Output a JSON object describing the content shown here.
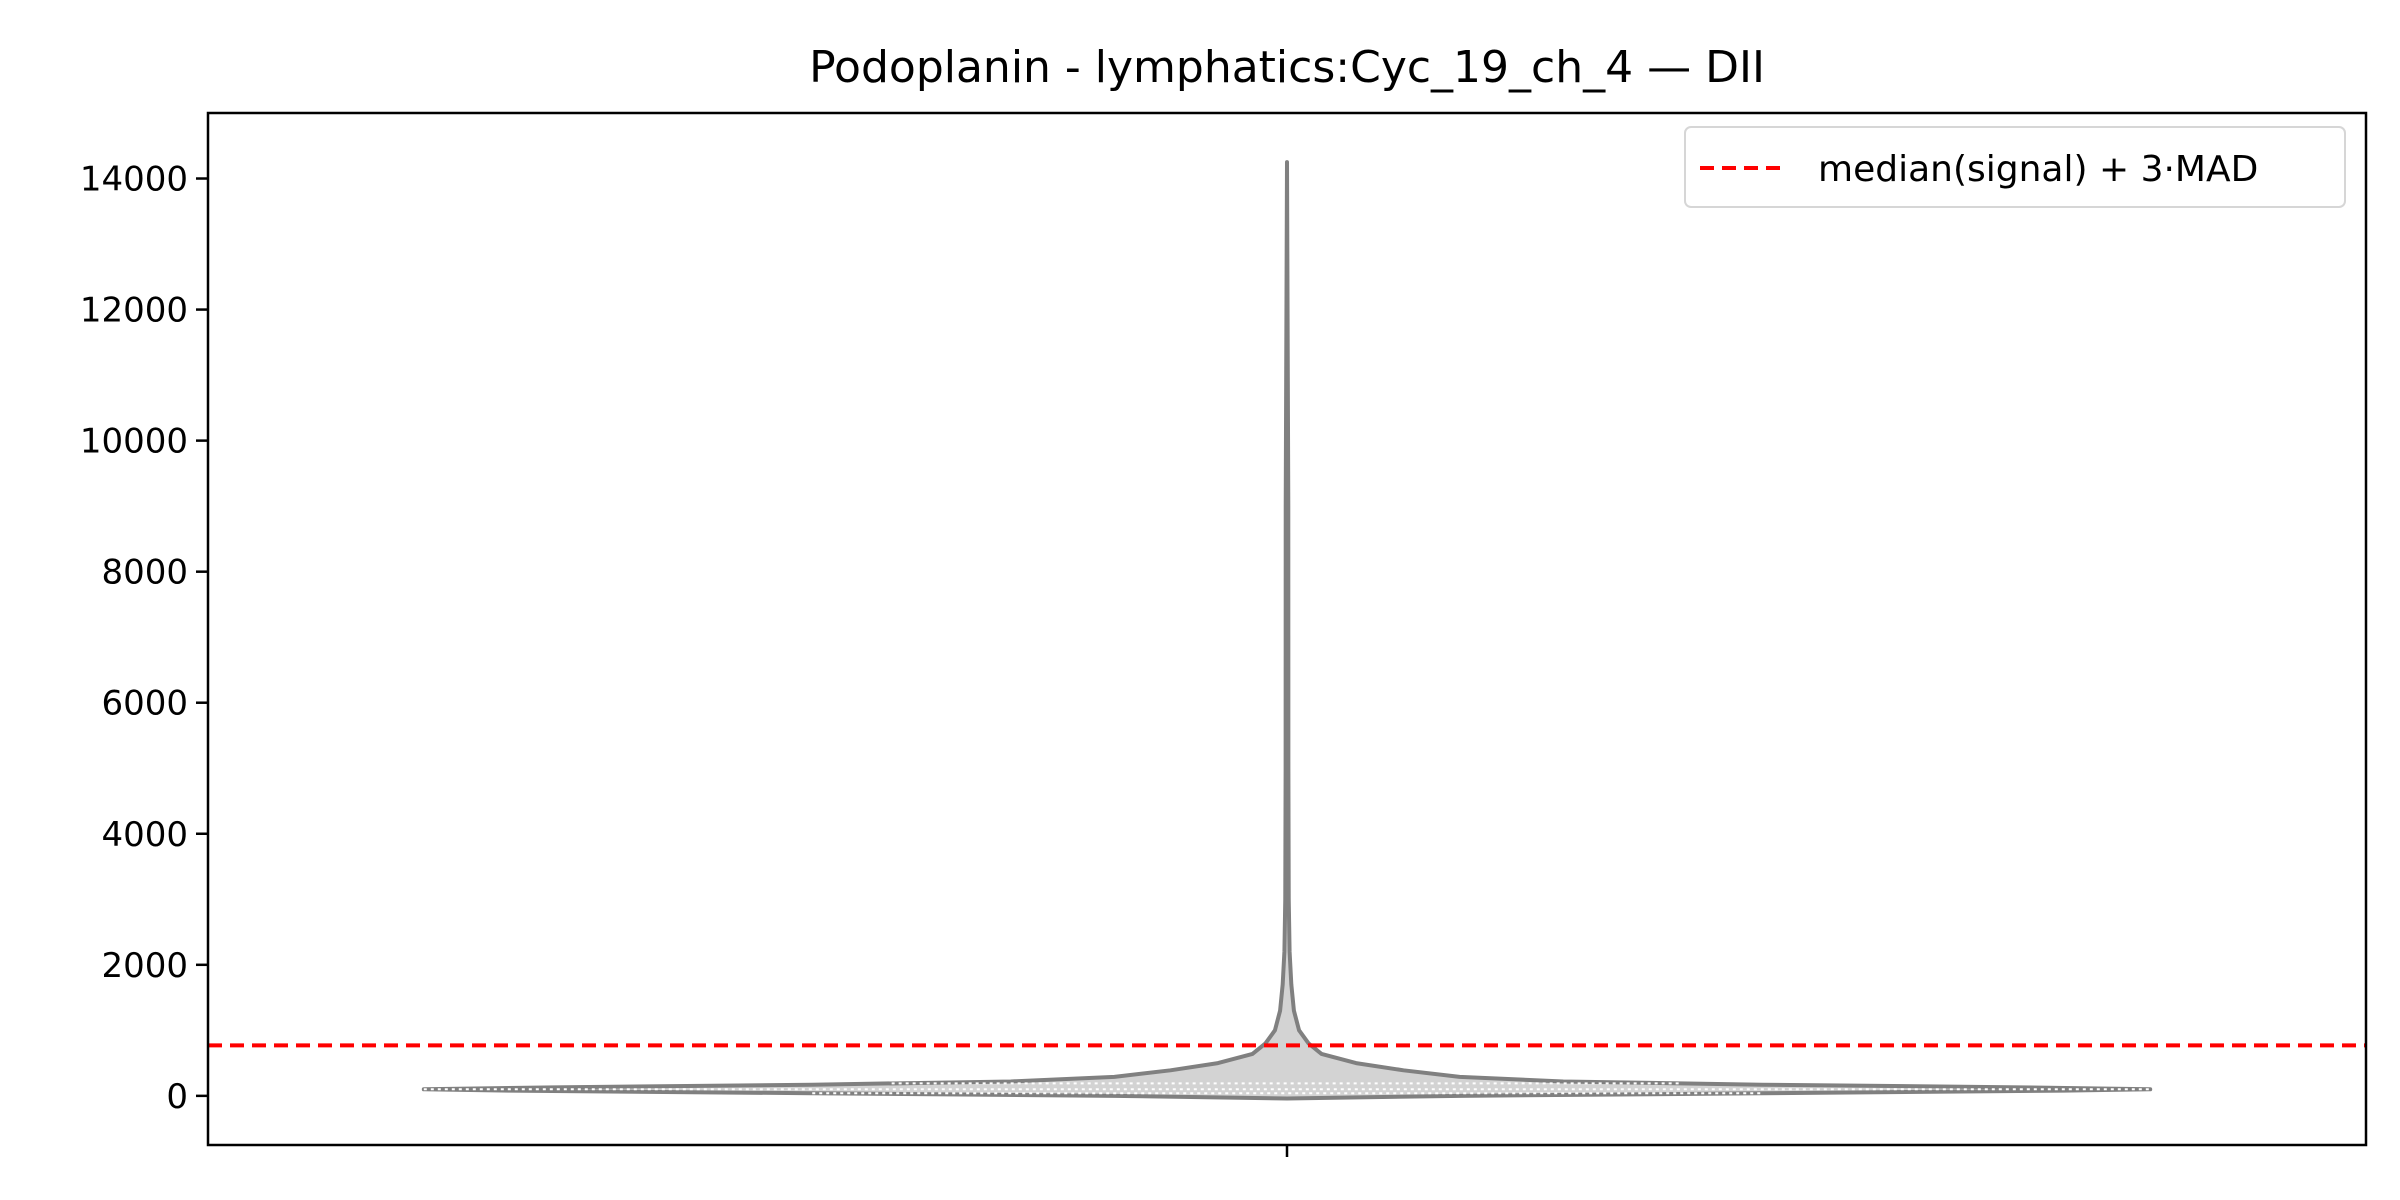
{
  "chart_data": {
    "type": "violin",
    "title": "Podoplanin - lymphatics:Cyc_19_ch_4 — DII",
    "xlabel": "",
    "ylabel": "",
    "x_tick_labels": [
      ""
    ],
    "ylim": [
      -750,
      15000
    ],
    "y_ticks": [
      0,
      2000,
      4000,
      6000,
      8000,
      10000,
      12000,
      14000
    ],
    "y_tick_labels": [
      "0",
      "2000",
      "4000",
      "6000",
      "8000",
      "10000",
      "12000",
      "14000"
    ],
    "grid": false,
    "legend": {
      "placement": "upper right",
      "entries": [
        {
          "label": "median(signal) + 3·MAD",
          "color": "#ff0000",
          "style": "dashed"
        }
      ]
    },
    "threshold": {
      "value": 770,
      "color": "#ff0000"
    },
    "violin": {
      "name": "",
      "fill": "#d3d3d3",
      "edge": "#808080",
      "max_half_width_fraction": 0.8,
      "profile": [
        {
          "y": -40,
          "w": 0.0
        },
        {
          "y": 0,
          "w": 0.2
        },
        {
          "y": 40,
          "w": 0.55
        },
        {
          "y": 80,
          "w": 0.9
        },
        {
          "y": 100,
          "w": 1.0
        },
        {
          "y": 130,
          "w": 0.85
        },
        {
          "y": 170,
          "w": 0.55
        },
        {
          "y": 220,
          "w": 0.32
        },
        {
          "y": 290,
          "w": 0.2
        },
        {
          "y": 390,
          "w": 0.135
        },
        {
          "y": 500,
          "w": 0.08
        },
        {
          "y": 640,
          "w": 0.04
        },
        {
          "y": 800,
          "w": 0.025
        },
        {
          "y": 1000,
          "w": 0.014
        },
        {
          "y": 1300,
          "w": 0.008
        },
        {
          "y": 1700,
          "w": 0.005
        },
        {
          "y": 2200,
          "w": 0.003
        },
        {
          "y": 3000,
          "w": 0.002
        },
        {
          "y": 5000,
          "w": 0.0016
        },
        {
          "y": 9000,
          "w": 0.0015
        },
        {
          "y": 14250,
          "w": 0.0
        }
      ],
      "quartiles": [
        40,
        100,
        190
      ]
    }
  }
}
